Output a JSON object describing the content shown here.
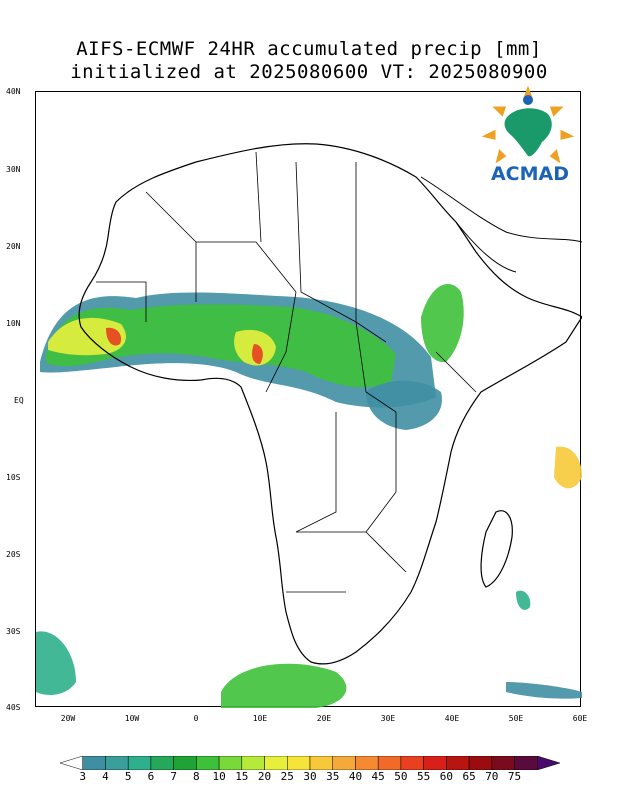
{
  "title_line1": "AIFS-ECMWF 24HR accumulated precip [mm]",
  "title_line2": "initialized at 2025080600 VT: 2025080900",
  "logo": {
    "text": "ACMAD",
    "icon": "africa-sun-logo-icon"
  },
  "lat_labels": [
    "40N",
    "30N",
    "20N",
    "10N",
    "EQ",
    "10S",
    "20S",
    "30S",
    "40S"
  ],
  "lon_labels": [
    "20W",
    "10W",
    "0",
    "10E",
    "20E",
    "30E",
    "40E",
    "50E",
    "60E"
  ],
  "colorbar": {
    "labels": [
      "3",
      "4",
      "5",
      "6",
      "7",
      "8",
      "10",
      "15",
      "20",
      "25",
      "30",
      "35",
      "40",
      "45",
      "50",
      "55",
      "60",
      "65",
      "70",
      "75"
    ],
    "colors": [
      "#3f8fa3",
      "#3a9f9a",
      "#2fb08c",
      "#25a85a",
      "#1fa336",
      "#3ec13a",
      "#79d83a",
      "#b5ea3a",
      "#e6f03c",
      "#f7e43a",
      "#f7c93a",
      "#f5a93a",
      "#f58a32",
      "#f06a28",
      "#e84020",
      "#d82018",
      "#b81410",
      "#9a0c10",
      "#7a0a1c",
      "#5a0a3c",
      "#4a0a6a"
    ]
  },
  "precip_colors": {
    "light": "#3f8fa3",
    "light2": "#2fb08c",
    "mid": "#3ec13a",
    "mid2": "#9ae03a",
    "high": "#e6f03c",
    "high2": "#f7c93a",
    "peak": "#e84020"
  }
}
